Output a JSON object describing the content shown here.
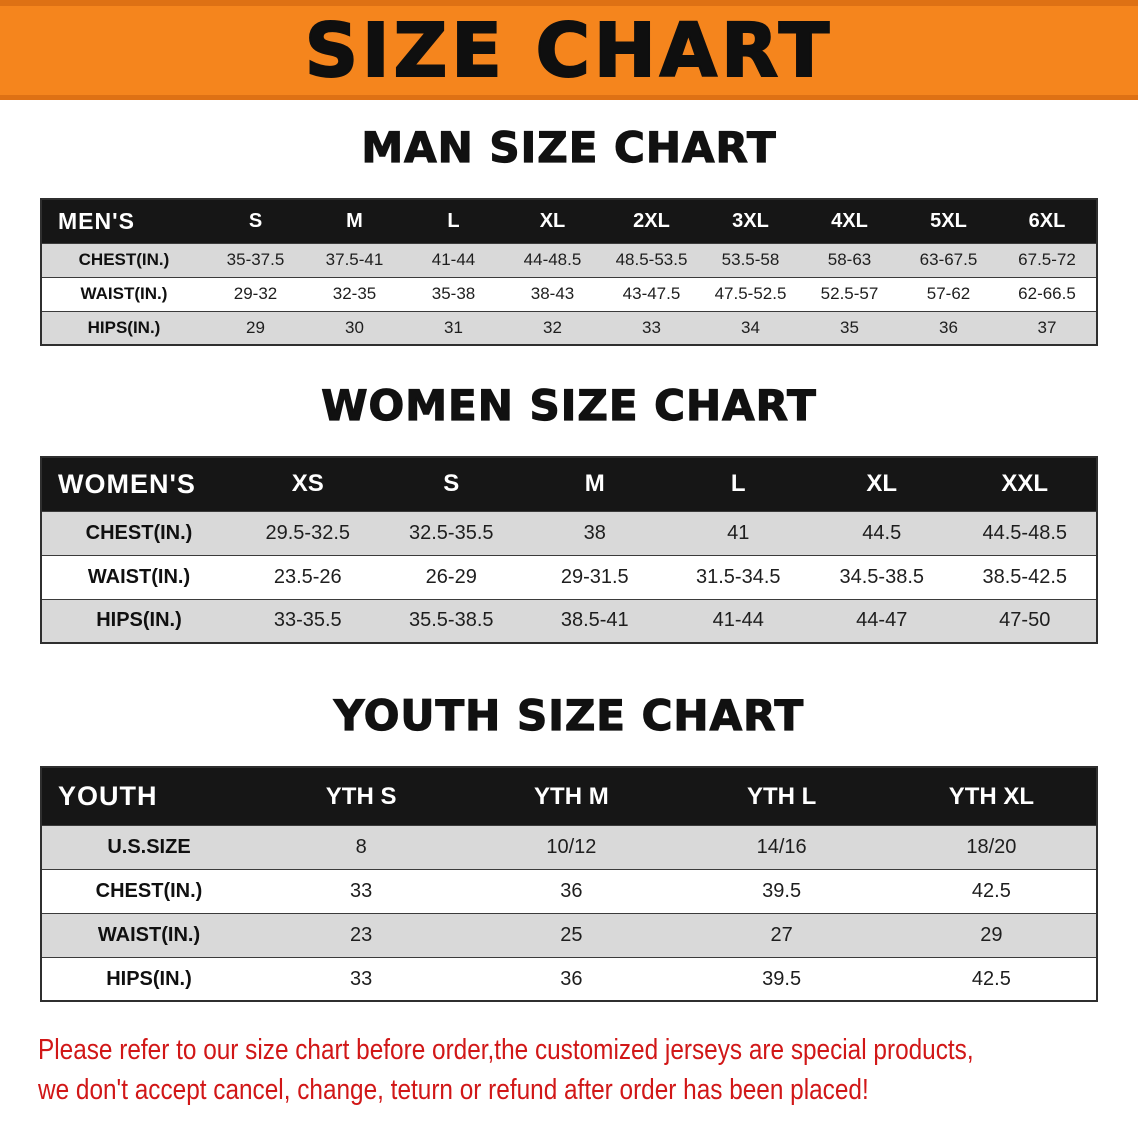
{
  "banner": {
    "title": "SIZE CHART"
  },
  "colors": {
    "banner_bg": "#f5851d",
    "banner_edge": "#de7114",
    "header_bg": "#161616",
    "stripe_gray": "#d9d9d9",
    "text_dark": "#1e1e1e",
    "footer_red": "#d11717"
  },
  "chart_data": [
    {
      "type": "table",
      "title": "MAN SIZE CHART",
      "corner_label": "MEN'S",
      "columns": [
        "S",
        "M",
        "L",
        "XL",
        "2XL",
        "3XL",
        "4XL",
        "5XL",
        "6XL"
      ],
      "rows": [
        {
          "label": "CHEST(IN.)",
          "values": [
            "35-37.5",
            "37.5-41",
            "41-44",
            "44-48.5",
            "48.5-53.5",
            "53.5-58",
            "58-63",
            "63-67.5",
            "67.5-72"
          ]
        },
        {
          "label": "WAIST(IN.)",
          "values": [
            "29-32",
            "32-35",
            "35-38",
            "38-43",
            "43-47.5",
            "47.5-52.5",
            "52.5-57",
            "57-62",
            "62-66.5"
          ]
        },
        {
          "label": "HIPS(IN.)",
          "values": [
            "29",
            "30",
            "31",
            "32",
            "33",
            "34",
            "35",
            "36",
            "37"
          ]
        }
      ]
    },
    {
      "type": "table",
      "title": "WOMEN SIZE CHART",
      "corner_label": "WOMEN'S",
      "columns": [
        "XS",
        "S",
        "M",
        "L",
        "XL",
        "XXL"
      ],
      "rows": [
        {
          "label": "CHEST(IN.)",
          "values": [
            "29.5-32.5",
            "32.5-35.5",
            "38",
            "41",
            "44.5",
            "44.5-48.5"
          ]
        },
        {
          "label": "WAIST(IN.)",
          "values": [
            "23.5-26",
            "26-29",
            "29-31.5",
            "31.5-34.5",
            "34.5-38.5",
            "38.5-42.5"
          ]
        },
        {
          "label": "HIPS(IN.)",
          "values": [
            "33-35.5",
            "35.5-38.5",
            "38.5-41",
            "41-44",
            "44-47",
            "47-50"
          ]
        }
      ]
    },
    {
      "type": "table",
      "title": "YOUTH SIZE CHART",
      "corner_label": "YOUTH",
      "columns": [
        "YTH S",
        "YTH M",
        "YTH L",
        "YTH XL"
      ],
      "rows": [
        {
          "label": "U.S.SIZE",
          "values": [
            "8",
            "10/12",
            "14/16",
            "18/20"
          ]
        },
        {
          "label": "CHEST(IN.)",
          "values": [
            "33",
            "36",
            "39.5",
            "42.5"
          ]
        },
        {
          "label": "WAIST(IN.)",
          "values": [
            "23",
            "25",
            "27",
            "29"
          ]
        },
        {
          "label": "HIPS(IN.)",
          "values": [
            "33",
            "36",
            "39.5",
            "42.5"
          ]
        }
      ]
    }
  ],
  "footer": {
    "line1": "Please refer to our size chart before order,the customized jerseys are special products,",
    "line2": "we don't accept cancel, change, teturn or refund after order has been placed!"
  }
}
